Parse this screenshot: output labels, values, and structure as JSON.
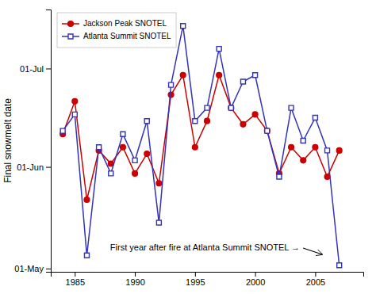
{
  "chart_data": {
    "type": "line",
    "ylabel": "Final snowmelt date",
    "annotation": "First year after fire at Atlanta Summit SNOTEL →",
    "x": [
      1984,
      1985,
      1986,
      1987,
      1988,
      1989,
      1990,
      1991,
      1992,
      1993,
      1994,
      1995,
      1996,
      1997,
      1998,
      1999,
      2000,
      2001,
      2002,
      2003,
      2004,
      2005,
      2006,
      2007
    ],
    "series": [
      {
        "name": "Jackson Peak SNOTEL",
        "color": "#CC0000",
        "marker": "circle",
        "values": [
          162,
          172,
          142,
          157,
          153,
          158,
          150,
          156,
          147,
          174,
          180,
          158,
          166,
          180,
          170,
          165,
          168,
          163,
          150,
          158,
          154,
          158,
          149,
          157
        ]
      },
      {
        "name": "Atlanta Summit SNOTEL",
        "color": "#3333BB",
        "marker": "square",
        "values": [
          163,
          168,
          125,
          158,
          150,
          162,
          154,
          166,
          135,
          177,
          195,
          166,
          170,
          188,
          170,
          178,
          180,
          163,
          149,
          170,
          160,
          167,
          157,
          122
        ]
      }
    ],
    "xlim": [
      1983,
      2009
    ],
    "xticks": [
      1985,
      1990,
      1995,
      2000,
      2005
    ],
    "ylim": [
      120,
      200
    ],
    "yticks": [
      {
        "value": 121,
        "label": "01-May"
      },
      {
        "value": 152,
        "label": "01-Jun"
      },
      {
        "value": 182,
        "label": "01-Jul"
      }
    ],
    "legend": "upper left",
    "grid": false
  }
}
